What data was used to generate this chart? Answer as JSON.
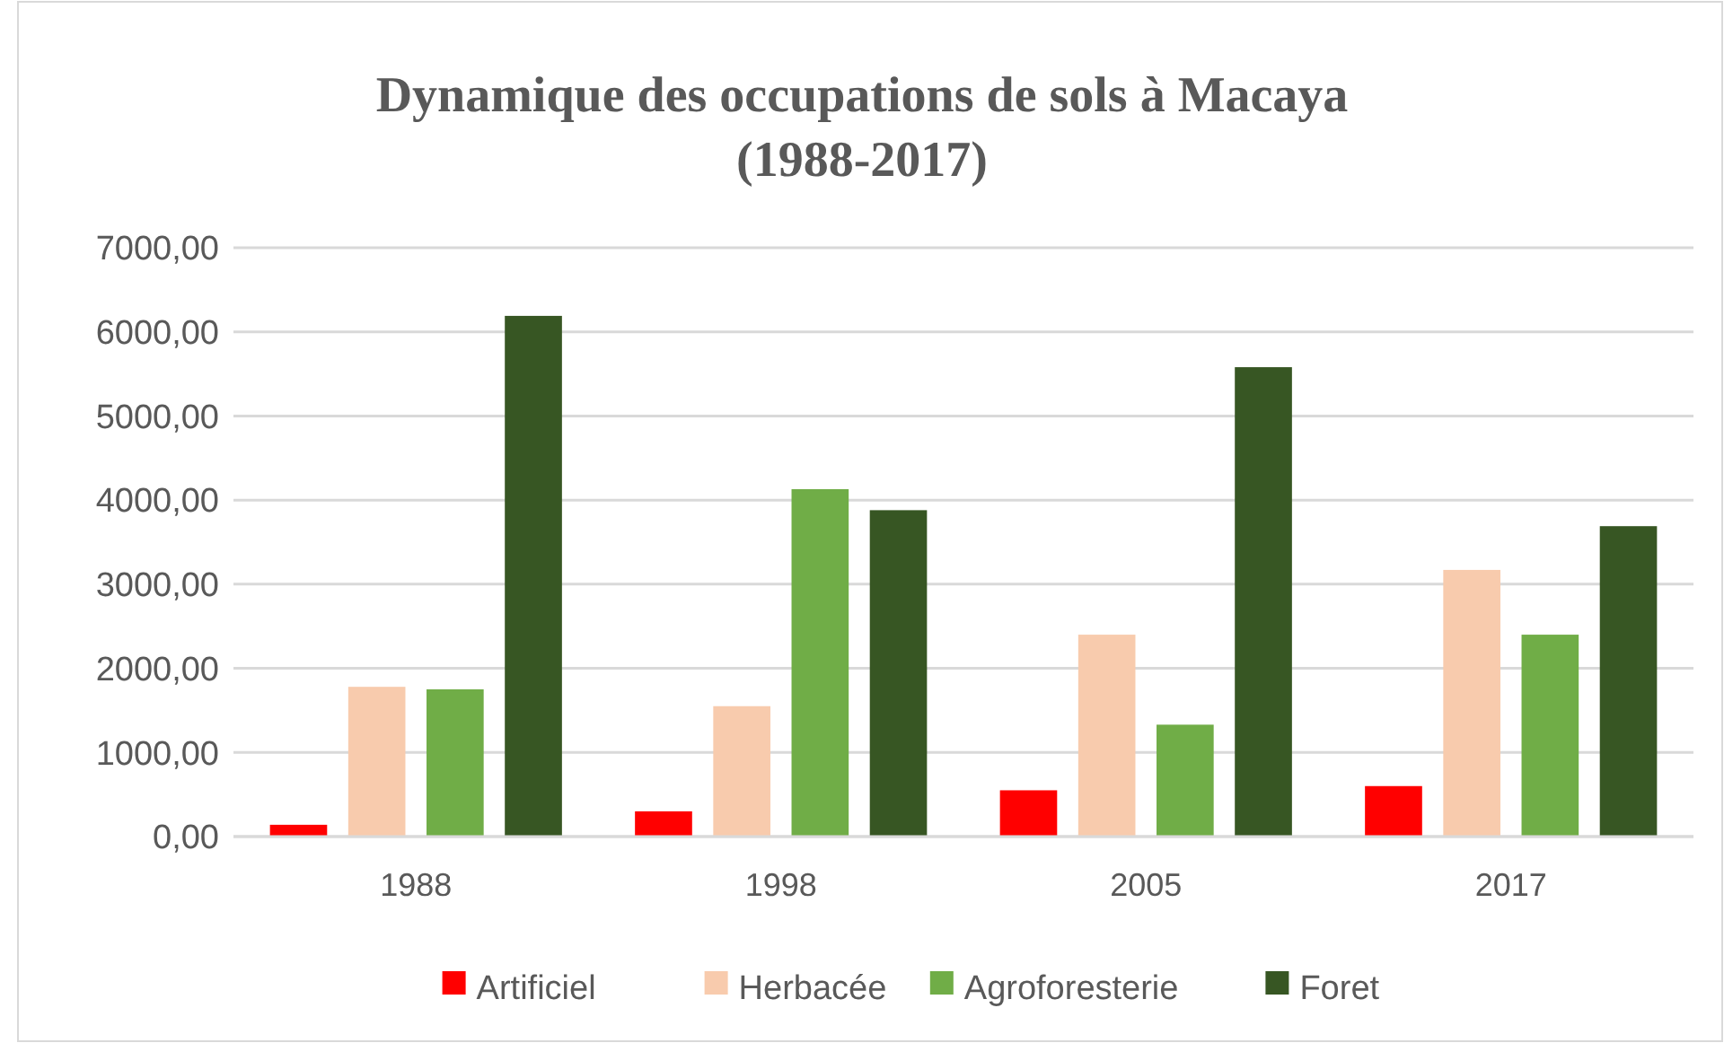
{
  "chart_data": {
    "type": "bar",
    "title": "Dynamique des occupations de sols à Macaya\n(1988-2017)",
    "categories": [
      "1988",
      "1998",
      "2005",
      "2017"
    ],
    "series": [
      {
        "name": "Artificiel",
        "color": "#ff0000",
        "values": [
          140,
          300,
          550,
          600
        ]
      },
      {
        "name": "Herbacée",
        "color": "#f8cbad",
        "values": [
          1780,
          1550,
          2400,
          3170
        ]
      },
      {
        "name": "Agroforesterie",
        "color": "#70ad47",
        "values": [
          1750,
          4130,
          1330,
          2400
        ]
      },
      {
        "name": "Foret",
        "color": "#375623",
        "values": [
          6190,
          3880,
          5580,
          3690
        ]
      }
    ],
    "ylim": [
      0,
      7000
    ],
    "yticks": [
      {
        "value": 0,
        "label": "0,00"
      },
      {
        "value": 1000,
        "label": "1000,00"
      },
      {
        "value": 2000,
        "label": "2000,00"
      },
      {
        "value": 3000,
        "label": "3000,00"
      },
      {
        "value": 4000,
        "label": "4000,00"
      },
      {
        "value": 5000,
        "label": "5000,00"
      },
      {
        "value": 6000,
        "label": "6000,00"
      },
      {
        "value": 7000,
        "label": "7000,00"
      }
    ],
    "grid": "y",
    "legend": "bottom"
  }
}
